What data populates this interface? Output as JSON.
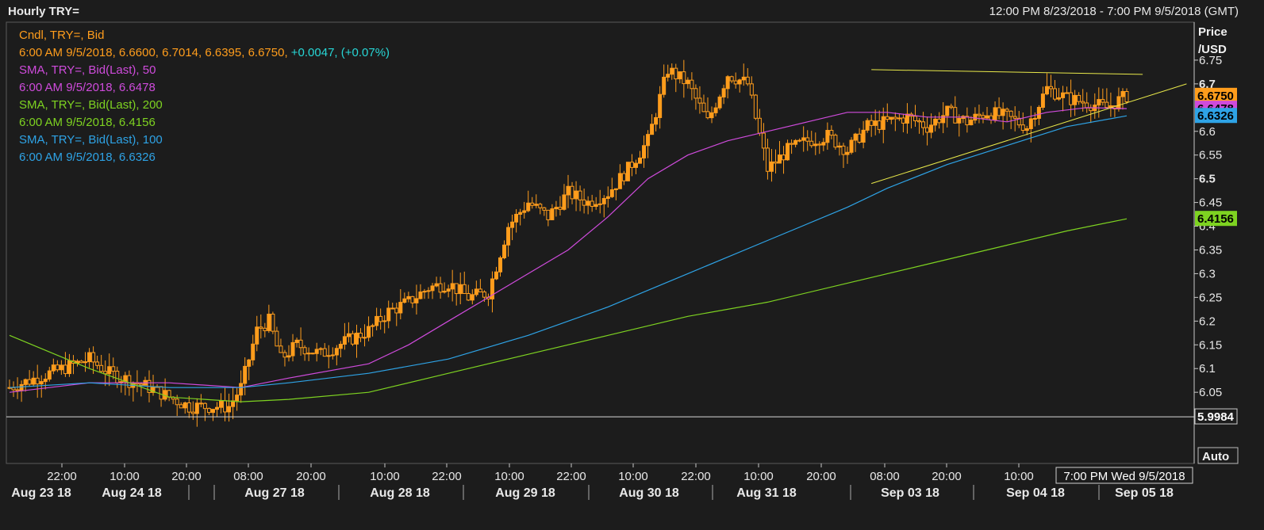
{
  "header": {
    "title": "Hourly TRY=",
    "range": "12:00 PM 8/23/2018 - 7:00 PM 9/5/2018 (GMT)"
  },
  "legend": [
    {
      "text": "Cndl, TRY=, Bid",
      "color": "#ff9d1c"
    },
    {
      "text": "6:00 AM 9/5/2018, 6.6600, 6.7014, 6.6395, 6.6750, ",
      "color": "#ff9d1c",
      "extra": "+0.0047, (+0.07%)",
      "extra_color": "#27d6d6"
    },
    {
      "text": "SMA, TRY=, Bid(Last),  50",
      "color": "#cf4bdc"
    },
    {
      "text": "6:00 AM 9/5/2018, 6.6478",
      "color": "#cf4bdc"
    },
    {
      "text": "SMA, TRY=, Bid(Last),  200",
      "color": "#7ed321"
    },
    {
      "text": "6:00 AM 9/5/2018, 6.4156",
      "color": "#7ed321"
    },
    {
      "text": "SMA, TRY=, Bid(Last),  100",
      "color": "#2ea3e6"
    },
    {
      "text": "6:00 AM 9/5/2018, 6.6326",
      "color": "#2ea3e6"
    }
  ],
  "axis": {
    "y_title_1": "Price",
    "y_title_2": "/USD",
    "auto_label": "Auto",
    "cursor_label": "7:00 PM Wed 9/5/2018"
  },
  "colors": {
    "background": "#1c1c1c",
    "candle": "#ff9d1c",
    "sma50": "#cf4bdc",
    "sma100": "#2ea3e6",
    "sma200": "#7ed321",
    "trendline": "#e8e84a",
    "axis": "#c8c8c8"
  },
  "chart_data": {
    "type": "candlestick",
    "title": "Hourly TRY=",
    "ylabel": "Price /USD",
    "ylim": [
      5.9,
      6.83
    ],
    "y_ticks": [
      "6.05",
      "6.1",
      "6.15",
      "6.2",
      "6.25",
      "6.3",
      "6.35",
      "6.4",
      "6.45",
      "6.5",
      "6.55",
      "6.6",
      "6.7",
      "6.75"
    ],
    "x_time_ticks": [
      "22:00",
      "10:00",
      "20:00",
      "08:00",
      "20:00",
      "10:00",
      "22:00",
      "10:00",
      "22:00",
      "10:00",
      "22:00",
      "10:00",
      "20:00",
      "08:00",
      "20:00",
      "10:00"
    ],
    "x_date_ticks": [
      "Aug 23 18",
      "Aug 24 18",
      "Aug 27 18",
      "Aug 28 18",
      "Aug 29 18",
      "Aug 30 18",
      "Aug 31 18",
      "Sep 03 18",
      "Sep 04 18",
      "Sep 05 18"
    ],
    "price_path": [
      [
        0,
        6.06
      ],
      [
        10,
        6.09
      ],
      [
        20,
        6.12
      ],
      [
        25,
        6.09
      ],
      [
        35,
        6.06
      ],
      [
        45,
        6.02
      ],
      [
        55,
        6.02
      ],
      [
        58,
        6.06
      ],
      [
        62,
        6.18
      ],
      [
        65,
        6.2
      ],
      [
        68,
        6.12
      ],
      [
        72,
        6.15
      ],
      [
        78,
        6.13
      ],
      [
        85,
        6.16
      ],
      [
        90,
        6.18
      ],
      [
        95,
        6.22
      ],
      [
        100,
        6.24
      ],
      [
        105,
        6.27
      ],
      [
        110,
        6.28
      ],
      [
        115,
        6.25
      ],
      [
        120,
        6.26
      ],
      [
        125,
        6.4
      ],
      [
        130,
        6.45
      ],
      [
        135,
        6.42
      ],
      [
        140,
        6.47
      ],
      [
        145,
        6.45
      ],
      [
        150,
        6.47
      ],
      [
        155,
        6.52
      ],
      [
        160,
        6.58
      ],
      [
        165,
        6.73
      ],
      [
        170,
        6.7
      ],
      [
        175,
        6.62
      ],
      [
        180,
        6.72
      ],
      [
        185,
        6.7
      ],
      [
        190,
        6.52
      ],
      [
        195,
        6.56
      ],
      [
        200,
        6.58
      ],
      [
        205,
        6.59
      ],
      [
        210,
        6.56
      ],
      [
        215,
        6.61
      ],
      [
        220,
        6.62
      ],
      [
        225,
        6.63
      ],
      [
        230,
        6.61
      ],
      [
        235,
        6.64
      ],
      [
        240,
        6.62
      ],
      [
        245,
        6.64
      ],
      [
        250,
        6.63
      ],
      [
        255,
        6.61
      ],
      [
        260,
        6.69
      ],
      [
        265,
        6.67
      ],
      [
        270,
        6.66
      ],
      [
        275,
        6.65
      ],
      [
        280,
        6.675
      ]
    ],
    "series": [
      {
        "name": "SMA, TRY=, Bid(Last),  50",
        "last": 6.6478,
        "points": [
          [
            0,
            6.05
          ],
          [
            20,
            6.07
          ],
          [
            40,
            6.07
          ],
          [
            58,
            6.06
          ],
          [
            70,
            6.08
          ],
          [
            90,
            6.11
          ],
          [
            100,
            6.15
          ],
          [
            110,
            6.2
          ],
          [
            120,
            6.25
          ],
          [
            130,
            6.3
          ],
          [
            140,
            6.35
          ],
          [
            150,
            6.42
          ],
          [
            160,
            6.5
          ],
          [
            170,
            6.55
          ],
          [
            180,
            6.58
          ],
          [
            190,
            6.6
          ],
          [
            200,
            6.62
          ],
          [
            210,
            6.64
          ],
          [
            220,
            6.64
          ],
          [
            230,
            6.63
          ],
          [
            240,
            6.63
          ],
          [
            250,
            6.62
          ],
          [
            260,
            6.64
          ],
          [
            270,
            6.65
          ],
          [
            280,
            6.6478
          ]
        ]
      },
      {
        "name": "SMA, TRY=, Bid(Last),  100",
        "last": 6.6326,
        "points": [
          [
            0,
            6.06
          ],
          [
            20,
            6.07
          ],
          [
            40,
            6.06
          ],
          [
            58,
            6.06
          ],
          [
            70,
            6.07
          ],
          [
            90,
            6.09
          ],
          [
            110,
            6.12
          ],
          [
            130,
            6.17
          ],
          [
            150,
            6.23
          ],
          [
            170,
            6.3
          ],
          [
            190,
            6.37
          ],
          [
            210,
            6.44
          ],
          [
            220,
            6.48
          ],
          [
            235,
            6.53
          ],
          [
            250,
            6.57
          ],
          [
            265,
            6.61
          ],
          [
            280,
            6.6326
          ]
        ]
      },
      {
        "name": "SMA, TRY=, Bid(Last),  200",
        "last": 6.4156,
        "points": [
          [
            0,
            6.17
          ],
          [
            20,
            6.1
          ],
          [
            40,
            6.04
          ],
          [
            58,
            6.03
          ],
          [
            70,
            6.035
          ],
          [
            90,
            6.05
          ],
          [
            110,
            6.09
          ],
          [
            130,
            6.13
          ],
          [
            150,
            6.17
          ],
          [
            170,
            6.21
          ],
          [
            190,
            6.24
          ],
          [
            210,
            6.28
          ],
          [
            230,
            6.32
          ],
          [
            250,
            6.36
          ],
          [
            265,
            6.39
          ],
          [
            280,
            6.4156
          ]
        ]
      }
    ],
    "trendlines": [
      {
        "name": "upper",
        "points": [
          [
            216,
            6.73
          ],
          [
            284,
            6.72
          ]
        ]
      },
      {
        "name": "lower",
        "points": [
          [
            216,
            6.49
          ],
          [
            295,
            6.7
          ]
        ]
      }
    ],
    "price_labels": [
      {
        "value": "6.6750",
        "color": "#ff9d1c",
        "price": 6.675
      },
      {
        "value": "6.6478",
        "color": "#cf4bdc",
        "price": 6.6478
      },
      {
        "value": "6.6326",
        "color": "#2ea3e6",
        "price": 6.6326
      },
      {
        "value": "6.4156",
        "color": "#7ed321",
        "price": 6.4156
      },
      {
        "value": "5.9984",
        "color": "#ffffff",
        "price": 5.9984
      }
    ]
  }
}
